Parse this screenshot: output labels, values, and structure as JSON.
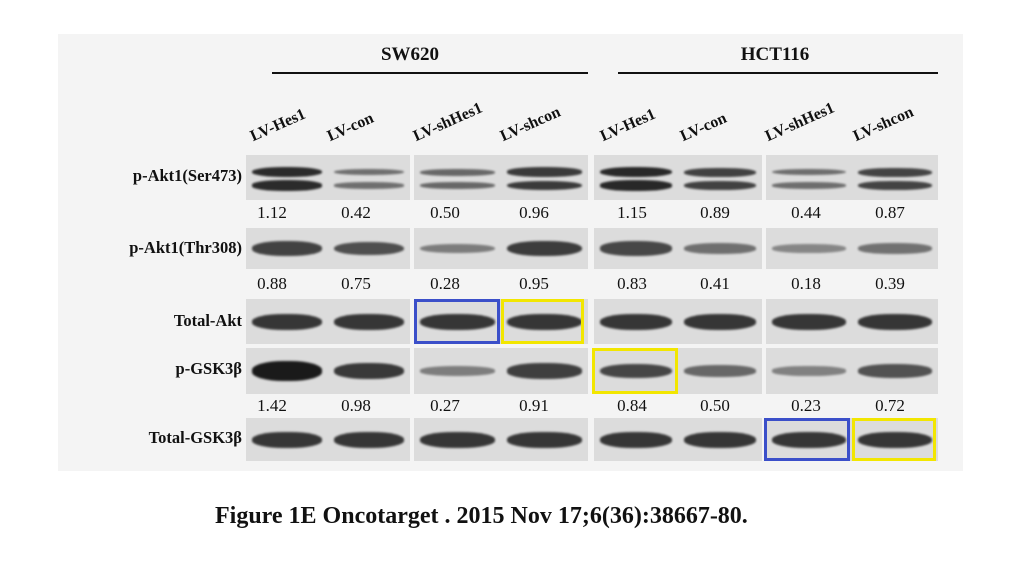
{
  "groups": [
    {
      "title": "SW620",
      "lanes": [
        "LV-Hes1",
        "LV-con",
        "LV-shHes1",
        "LV-shcon"
      ]
    },
    {
      "title": "HCT116",
      "lanes": [
        "LV-Hes1",
        "LV-con",
        "LV-shHes1",
        "LV-shcon"
      ]
    }
  ],
  "rows": [
    {
      "label": "p-Akt1(Ser473)",
      "values": [
        "1.12",
        "0.42",
        "0.50",
        "0.96",
        "1.15",
        "0.89",
        "0.44",
        "0.87"
      ],
      "intensity": [
        1.12,
        0.42,
        0.5,
        0.96,
        1.15,
        0.89,
        0.44,
        0.87
      ],
      "double": true
    },
    {
      "label": "p-Akt1(Thr308)",
      "values": [
        "0.88",
        "0.75",
        "0.28",
        "0.95",
        "0.83",
        "0.41",
        "0.18",
        "0.39"
      ],
      "intensity": [
        0.88,
        0.75,
        0.28,
        0.95,
        0.83,
        0.41,
        0.18,
        0.39
      ],
      "double": false
    },
    {
      "label": "Total-Akt",
      "values": [],
      "intensity": [
        1,
        1,
        1,
        1,
        1,
        1,
        1,
        1
      ],
      "double": false
    },
    {
      "label": "p-GSK3β",
      "values": [
        "1.42",
        "0.98",
        "0.27",
        "0.91",
        "0.84",
        "0.50",
        "0.23",
        "0.72"
      ],
      "intensity": [
        1.42,
        0.98,
        0.27,
        0.91,
        0.84,
        0.5,
        0.23,
        0.72
      ],
      "double": false
    },
    {
      "label": "Total-GSK3β",
      "values": [],
      "intensity": [
        1,
        1,
        1,
        1,
        1,
        1,
        1,
        1
      ],
      "double": false
    }
  ],
  "highlights": [
    {
      "color": "#3b4fc9",
      "meaning": "blue box"
    },
    {
      "color": "#f2e600",
      "meaning": "yellow box"
    }
  ],
  "caption": "Figure 1E Oncotarget . 2015 Nov 17;6(36):38667-80."
}
